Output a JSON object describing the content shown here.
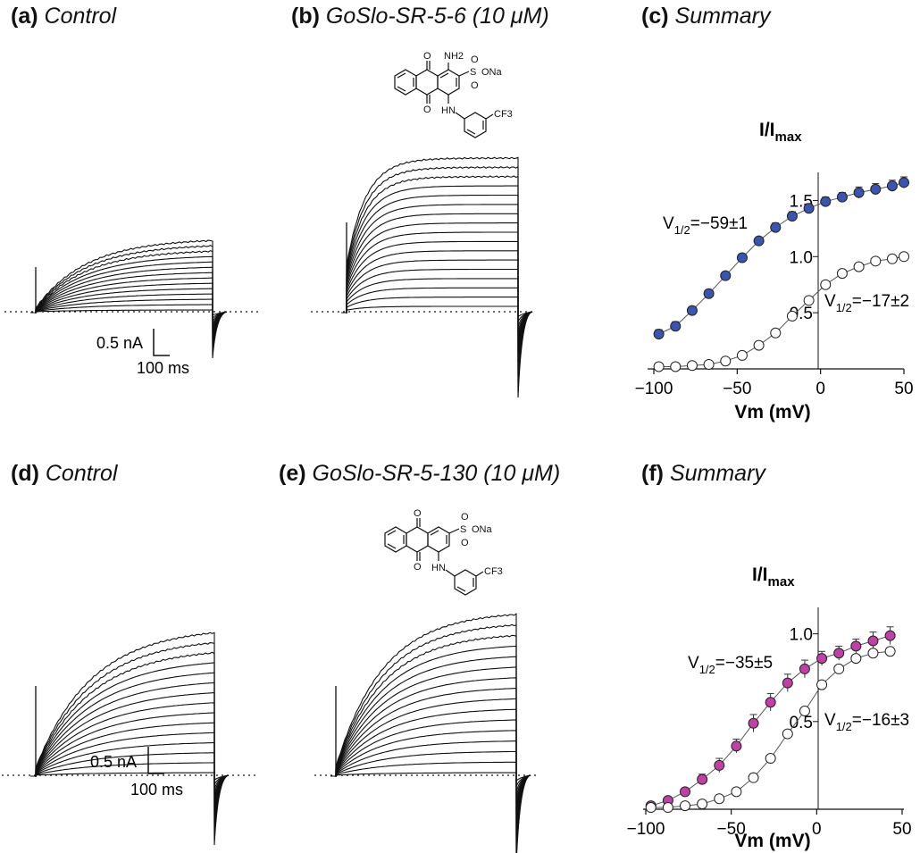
{
  "panels": {
    "a": {
      "letter": "(a)",
      "title": "Control"
    },
    "b": {
      "letter": "(b)",
      "title": "GoSlo-SR-5-6 (10 μM)"
    },
    "c": {
      "letter": "(c)",
      "title": "Summary"
    },
    "d": {
      "letter": "(d)",
      "title": "Control"
    },
    "e": {
      "letter": "(e)",
      "title": "GoSlo-SR-5-130 (10 μM)"
    },
    "f": {
      "letter": "(f)",
      "title": "Summary"
    }
  },
  "scale_bars": {
    "top": {
      "current": "0.5 nA",
      "time": "100 ms"
    },
    "bottom": {
      "current": "0.5 nA",
      "time": "100 ms"
    }
  },
  "molecules": {
    "b": {
      "labels": [
        "NH2",
        "S",
        "ONa",
        "O",
        "O",
        "O",
        "O",
        "HN",
        "CF3"
      ]
    },
    "e": {
      "labels": [
        "S",
        "ONa",
        "O",
        "O",
        "O",
        "O",
        "HN",
        "CF3"
      ]
    }
  },
  "colors": {
    "blue": "#3a55b0",
    "magenta": "#c040a8",
    "open": "#ffffff",
    "line": "#111111"
  },
  "chart_data": [
    {
      "type": "scatter",
      "panel": "c",
      "ylabel_main": "I/I",
      "ylabel_sub": "max",
      "xlabel": "Vm (mV)",
      "xlim": [
        -100,
        50
      ],
      "ylim": [
        0,
        1.75
      ],
      "x_ticks": [
        "-100",
        "-50",
        "0",
        "50"
      ],
      "y_ticks": [
        "0.5",
        "1.0",
        "1.5"
      ],
      "annotations": [
        {
          "main": "V",
          "sub": "1/2",
          "value": "=−59±1"
        },
        {
          "main": "V",
          "sub": "1/2",
          "value": "=−17±2"
        }
      ],
      "series": [
        {
          "name": "",
          "fill": "blue",
          "x": [
            -97,
            -87,
            -77,
            -67,
            -57,
            -47,
            -37,
            -27,
            -17,
            -7,
            3,
            13,
            23,
            33,
            43,
            50
          ],
          "y": [
            0.31,
            0.38,
            0.52,
            0.67,
            0.83,
            0.99,
            1.14,
            1.26,
            1.36,
            1.43,
            1.49,
            1.53,
            1.57,
            1.6,
            1.63,
            1.66
          ],
          "err": [
            0.04,
            0.04,
            0.03,
            0.03,
            0.03,
            0.03,
            0.03,
            0.04,
            0.04,
            0.04,
            0.04,
            0.04,
            0.05,
            0.05,
            0.05,
            0.05
          ]
        },
        {
          "name": "",
          "fill": "open",
          "x": [
            -97,
            -87,
            -77,
            -67,
            -57,
            -47,
            -37,
            -27,
            -17,
            -7,
            3,
            13,
            23,
            33,
            43,
            50
          ],
          "y": [
            0.02,
            0.02,
            0.03,
            0.04,
            0.07,
            0.12,
            0.21,
            0.32,
            0.47,
            0.61,
            0.75,
            0.85,
            0.91,
            0.96,
            0.98,
            1.0
          ],
          "err": [
            0,
            0,
            0,
            0,
            0,
            0,
            0,
            0,
            0,
            0,
            0,
            0,
            0,
            0,
            0,
            0
          ]
        }
      ]
    },
    {
      "type": "scatter",
      "panel": "f",
      "ylabel_main": "I/I",
      "ylabel_sub": "max",
      "xlabel": "Vm (mV)",
      "xlim": [
        -100,
        50
      ],
      "ylim": [
        0,
        1.1
      ],
      "x_ticks": [
        "-100",
        "-50",
        "0",
        "50"
      ],
      "y_ticks": [
        "0.5",
        "1.0"
      ],
      "annotations": [
        {
          "main": "V",
          "sub": "1/2",
          "value": "=−35±5"
        },
        {
          "main": "V",
          "sub": "1/2",
          "value": "=−16±3"
        }
      ],
      "series": [
        {
          "name": "",
          "fill": "magenta",
          "x": [
            -97,
            -87,
            -77,
            -67,
            -57,
            -47,
            -37,
            -27,
            -17,
            -7,
            3,
            13,
            23,
            33,
            43
          ],
          "y": [
            0.02,
            0.05,
            0.1,
            0.17,
            0.25,
            0.36,
            0.49,
            0.61,
            0.72,
            0.8,
            0.86,
            0.89,
            0.93,
            0.96,
            0.99
          ],
          "err": [
            0.02,
            0.02,
            0.02,
            0.03,
            0.04,
            0.04,
            0.05,
            0.05,
            0.05,
            0.05,
            0.04,
            0.04,
            0.04,
            0.05,
            0.05
          ]
        },
        {
          "name": "",
          "fill": "open",
          "x": [
            -97,
            -87,
            -77,
            -67,
            -57,
            -47,
            -37,
            -27,
            -17,
            -7,
            3,
            13,
            23,
            33,
            43
          ],
          "y": [
            0.01,
            0.01,
            0.02,
            0.03,
            0.06,
            0.1,
            0.18,
            0.29,
            0.43,
            0.56,
            0.71,
            0.8,
            0.86,
            0.89,
            0.9
          ],
          "err": [
            0,
            0,
            0,
            0,
            0,
            0,
            0,
            0,
            0.02,
            0.02,
            0,
            0,
            0,
            0,
            0
          ]
        }
      ]
    }
  ]
}
